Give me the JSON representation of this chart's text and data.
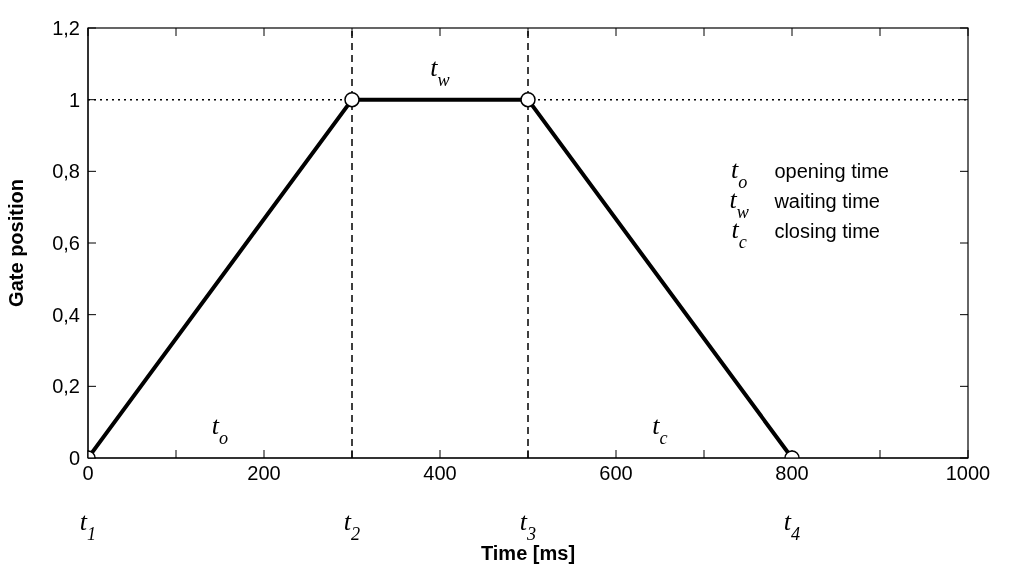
{
  "chart_data": {
    "type": "line",
    "xlabel": "Time [ms]",
    "ylabel": "Gate position",
    "x": [
      0,
      300,
      500,
      800
    ],
    "series": [
      {
        "color": "#000000",
        "values": [
          0,
          1,
          1,
          0
        ]
      }
    ],
    "xlim": [
      0,
      1000
    ],
    "ylim": [
      0,
      1.2
    ],
    "xticks": [
      0,
      {
        "value": 100,
        "label": null
      },
      200,
      {
        "value": 300,
        "label": null
      },
      400,
      {
        "value": 500,
        "label": null
      },
      600,
      {
        "value": 700,
        "label": null
      },
      800,
      {
        "value": 900,
        "label": null
      },
      1000
    ],
    "yticks": [
      0,
      {
        "value": 0.2,
        "label": "0,2"
      },
      {
        "value": 0.4,
        "label": "0,4"
      },
      {
        "value": 0.6,
        "label": "0,6"
      },
      {
        "value": 0.8,
        "label": "0,8"
      },
      1,
      {
        "value": 1.2,
        "label": "1,2"
      }
    ],
    "marker": "circle",
    "line_style": "solid",
    "ref_lines": [
      {
        "axis": "y",
        "value": 1,
        "line_style": "dotted",
        "color": "#000000"
      },
      {
        "axis": "x",
        "value": 300,
        "line_style": "dashed",
        "color": "#000000"
      },
      {
        "axis": "x",
        "value": 500,
        "line_style": "dashed",
        "color": "#000000"
      }
    ],
    "annotations": [
      "t$_{o}$",
      "t$_{w}$",
      "t$_{c}$",
      "t$_{1}$",
      "t$_{2}$",
      "t$_{3}$",
      "t$_{4}$",
      "t$_{o}$   opening time",
      "t$_{w}$   waiting time",
      "t$_{c}$   closing time"
    ]
  }
}
